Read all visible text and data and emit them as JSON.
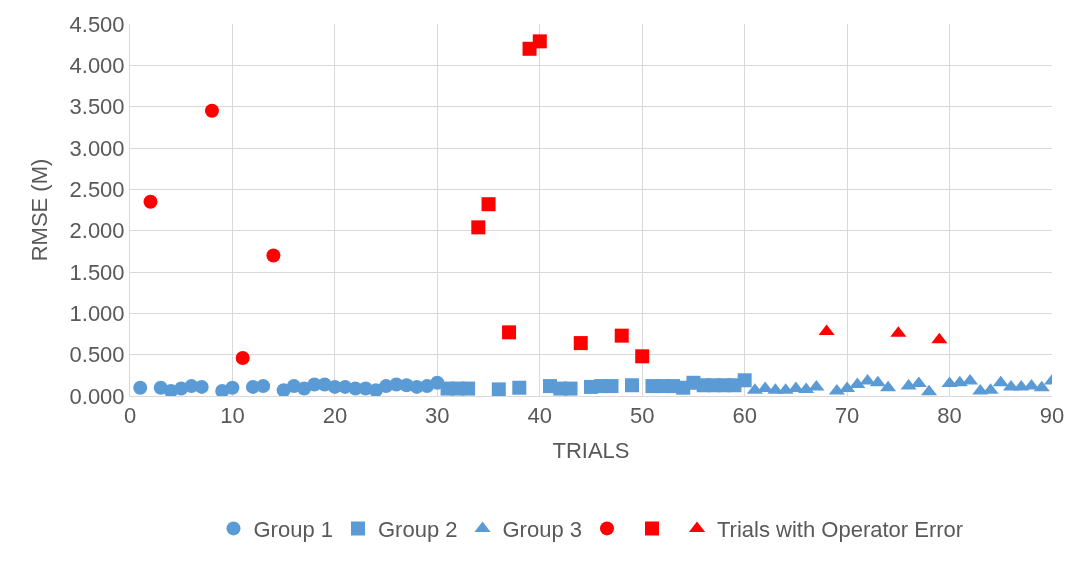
{
  "chart_data": {
    "type": "scatter",
    "xlabel": "TRIALS",
    "ylabel": "RMSE (M)",
    "xlim": [
      0,
      90
    ],
    "xticks": [
      0,
      10,
      20,
      30,
      40,
      50,
      60,
      70,
      80,
      90
    ],
    "ylim": [
      0,
      4.5
    ],
    "yticks": [
      {
        "value": 0,
        "label": "0.000"
      },
      {
        "value": 0.5,
        "label": "0.500"
      },
      {
        "value": 1,
        "label": "1.000"
      },
      {
        "value": 1.5,
        "label": "1.500"
      },
      {
        "value": 2,
        "label": "2.000"
      },
      {
        "value": 2.5,
        "label": "2.500"
      },
      {
        "value": 3,
        "label": "3.000"
      },
      {
        "value": 3.5,
        "label": "3.500"
      },
      {
        "value": 4,
        "label": "4.000"
      },
      {
        "value": 4.5,
        "label": "4.500"
      }
    ],
    "grid": true,
    "legend": "bottom",
    "series": [
      {
        "name": "Group 1",
        "color": "#5b9bd5",
        "marker": "circle",
        "x": [
          1,
          3,
          4,
          5,
          6,
          7,
          9,
          10,
          12,
          13,
          15,
          16,
          17,
          18,
          19,
          20,
          21,
          22,
          23,
          24,
          25,
          26,
          27,
          28,
          29,
          30
        ],
        "values": [
          0.1,
          0.1,
          0.06,
          0.09,
          0.12,
          0.11,
          0.06,
          0.1,
          0.11,
          0.12,
          0.07,
          0.12,
          0.09,
          0.14,
          0.14,
          0.11,
          0.11,
          0.09,
          0.09,
          0.07,
          0.12,
          0.14,
          0.13,
          0.11,
          0.12,
          0.16
        ]
      },
      {
        "name": "Group 2",
        "color": "#5b9bd5",
        "marker": "square",
        "x": [
          31,
          32,
          33,
          36,
          38,
          41,
          42,
          43,
          45,
          46,
          47,
          49,
          51,
          52,
          53,
          54,
          55,
          56,
          57,
          58,
          59,
          60
        ],
        "values": [
          0.09,
          0.09,
          0.09,
          0.08,
          0.1,
          0.12,
          0.09,
          0.09,
          0.11,
          0.12,
          0.12,
          0.13,
          0.12,
          0.12,
          0.12,
          0.1,
          0.16,
          0.13,
          0.13,
          0.13,
          0.13,
          0.19
        ]
      },
      {
        "name": "Group 3",
        "color": "#5b9bd5",
        "marker": "triangle",
        "x": [
          61,
          62,
          63,
          64,
          65,
          66,
          67,
          69,
          70,
          71,
          72,
          73,
          74,
          76,
          77,
          78,
          80,
          81,
          82,
          83,
          84,
          85,
          86,
          87,
          88,
          89,
          90
        ],
        "values": [
          0.07,
          0.09,
          0.07,
          0.07,
          0.09,
          0.08,
          0.11,
          0.06,
          0.09,
          0.14,
          0.18,
          0.16,
          0.1,
          0.12,
          0.15,
          0.05,
          0.15,
          0.16,
          0.18,
          0.06,
          0.07,
          0.16,
          0.11,
          0.11,
          0.12,
          0.1,
          0.18
        ]
      },
      {
        "color": "#ff0000",
        "marker": "circle",
        "x": [
          2,
          8,
          11,
          14
        ],
        "values": [
          2.35,
          3.45,
          0.46,
          1.7
        ]
      },
      {
        "color": "#ff0000",
        "marker": "square",
        "x": [
          34,
          35,
          37,
          39,
          40,
          44,
          48,
          50
        ],
        "values": [
          2.04,
          2.32,
          0.77,
          4.2,
          4.29,
          0.64,
          0.73,
          0.48
        ]
      },
      {
        "name": "Trials with Operator Error",
        "color": "#ff0000",
        "marker": "triangle",
        "x": [
          68,
          75,
          79
        ],
        "values": [
          0.78,
          0.76,
          0.68
        ]
      }
    ]
  }
}
